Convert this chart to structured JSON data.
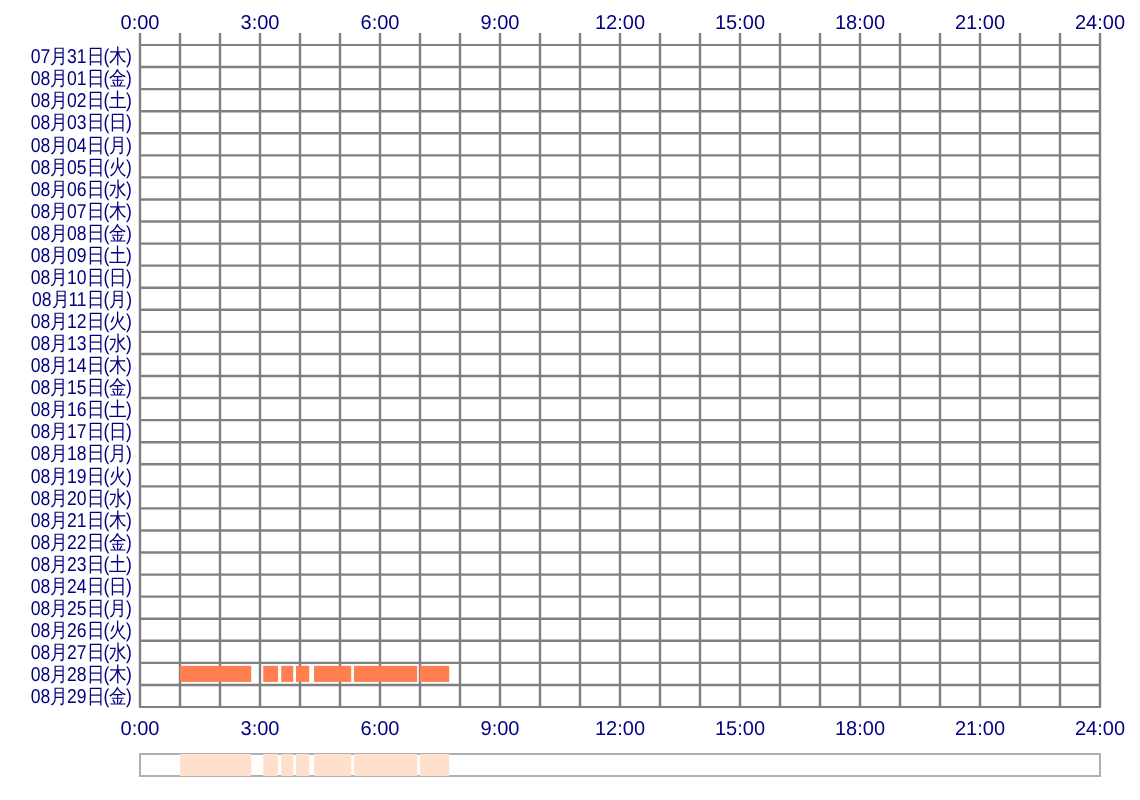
{
  "chart_data": [
    {
      "type": "bar",
      "orientation": "horizontal",
      "grid": true,
      "categories": [
        "07月31日(木)",
        "08月01日(金)",
        "08月02日(土)",
        "08月03日(日)",
        "08月04日(月)",
        "08月05日(火)",
        "08月06日(水)",
        "08月07日(木)",
        "08月08日(金)",
        "08月09日(土)",
        "08月10日(日)",
        "08月11日(月)",
        "08月12日(火)",
        "08月13日(水)",
        "08月14日(木)",
        "08月15日(金)",
        "08月16日(土)",
        "08月17日(日)",
        "08月18日(月)",
        "08月19日(火)",
        "08月20日(水)",
        "08月21日(木)",
        "08月22日(金)",
        "08月23日(土)",
        "08月24日(日)",
        "08月25日(月)",
        "08月26日(火)",
        "08月27日(水)",
        "08月28日(木)",
        "08月29日(金)"
      ],
      "series": [
        {
          "color": "#ff7f50",
          "values": [
            null,
            null,
            null,
            null,
            null,
            null,
            null,
            null,
            null,
            null,
            null,
            null,
            null,
            null,
            null,
            null,
            null,
            null,
            null,
            null,
            null,
            null,
            null,
            null,
            null,
            null,
            null,
            null,
            1.78,
            null
          ],
          "base": [
            null,
            null,
            null,
            null,
            null,
            null,
            null,
            null,
            null,
            null,
            null,
            null,
            null,
            null,
            null,
            null,
            null,
            null,
            null,
            null,
            null,
            null,
            null,
            null,
            null,
            null,
            null,
            null,
            1.0,
            null
          ]
        },
        {
          "color": "#ff7f50",
          "values": [
            null,
            null,
            null,
            null,
            null,
            null,
            null,
            null,
            null,
            null,
            null,
            null,
            null,
            null,
            null,
            null,
            null,
            null,
            null,
            null,
            null,
            null,
            null,
            null,
            null,
            null,
            null,
            null,
            0.37,
            null
          ],
          "base": [
            null,
            null,
            null,
            null,
            null,
            null,
            null,
            null,
            null,
            null,
            null,
            null,
            null,
            null,
            null,
            null,
            null,
            null,
            null,
            null,
            null,
            null,
            null,
            null,
            null,
            null,
            null,
            null,
            3.08,
            null
          ]
        },
        {
          "color": "#ff7f50",
          "values": [
            null,
            null,
            null,
            null,
            null,
            null,
            null,
            null,
            null,
            null,
            null,
            null,
            null,
            null,
            null,
            null,
            null,
            null,
            null,
            null,
            null,
            null,
            null,
            null,
            null,
            null,
            null,
            null,
            0.3,
            null
          ],
          "base": [
            null,
            null,
            null,
            null,
            null,
            null,
            null,
            null,
            null,
            null,
            null,
            null,
            null,
            null,
            null,
            null,
            null,
            null,
            null,
            null,
            null,
            null,
            null,
            null,
            null,
            null,
            null,
            null,
            3.53,
            null
          ]
        },
        {
          "color": "#ff7f50",
          "values": [
            null,
            null,
            null,
            null,
            null,
            null,
            null,
            null,
            null,
            null,
            null,
            null,
            null,
            null,
            null,
            null,
            null,
            null,
            null,
            null,
            null,
            null,
            null,
            null,
            null,
            null,
            null,
            null,
            0.33,
            null
          ],
          "base": [
            null,
            null,
            null,
            null,
            null,
            null,
            null,
            null,
            null,
            null,
            null,
            null,
            null,
            null,
            null,
            null,
            null,
            null,
            null,
            null,
            null,
            null,
            null,
            null,
            null,
            null,
            null,
            null,
            3.9,
            null
          ]
        },
        {
          "color": "#ff7f50",
          "values": [
            null,
            null,
            null,
            null,
            null,
            null,
            null,
            null,
            null,
            null,
            null,
            null,
            null,
            null,
            null,
            null,
            null,
            null,
            null,
            null,
            null,
            null,
            null,
            null,
            null,
            null,
            null,
            null,
            0.93,
            null
          ],
          "base": [
            null,
            null,
            null,
            null,
            null,
            null,
            null,
            null,
            null,
            null,
            null,
            null,
            null,
            null,
            null,
            null,
            null,
            null,
            null,
            null,
            null,
            null,
            null,
            null,
            null,
            null,
            null,
            null,
            4.35,
            null
          ]
        },
        {
          "color": "#ff7f50",
          "values": [
            null,
            null,
            null,
            null,
            null,
            null,
            null,
            null,
            null,
            null,
            null,
            null,
            null,
            null,
            null,
            null,
            null,
            null,
            null,
            null,
            null,
            null,
            null,
            null,
            null,
            null,
            null,
            null,
            1.58,
            null
          ],
          "base": [
            null,
            null,
            null,
            null,
            null,
            null,
            null,
            null,
            null,
            null,
            null,
            null,
            null,
            null,
            null,
            null,
            null,
            null,
            null,
            null,
            null,
            null,
            null,
            null,
            null,
            null,
            null,
            null,
            5.35,
            null
          ]
        },
        {
          "color": "#ff7f50",
          "values": [
            null,
            null,
            null,
            null,
            null,
            null,
            null,
            null,
            null,
            null,
            null,
            null,
            null,
            null,
            null,
            null,
            null,
            null,
            null,
            null,
            null,
            null,
            null,
            null,
            null,
            null,
            null,
            null,
            0.73,
            null
          ],
          "base": [
            null,
            null,
            null,
            null,
            null,
            null,
            null,
            null,
            null,
            null,
            null,
            null,
            null,
            null,
            null,
            null,
            null,
            null,
            null,
            null,
            null,
            null,
            null,
            null,
            null,
            null,
            null,
            null,
            7.0,
            null
          ]
        }
      ],
      "xlim": [
        0,
        24
      ],
      "xticks": [
        {
          "value": 0,
          "label": "0:00"
        },
        {
          "value": 1,
          "label": null
        },
        {
          "value": 2,
          "label": null
        },
        {
          "value": 3,
          "label": "3:00"
        },
        {
          "value": 4,
          "label": null
        },
        {
          "value": 5,
          "label": null
        },
        {
          "value": 6,
          "label": "6:00"
        },
        {
          "value": 7,
          "label": null
        },
        {
          "value": 8,
          "label": null
        },
        {
          "value": 9,
          "label": "9:00"
        },
        {
          "value": 10,
          "label": null
        },
        {
          "value": 11,
          "label": null
        },
        {
          "value": 12,
          "label": "12:00"
        },
        {
          "value": 13,
          "label": null
        },
        {
          "value": 14,
          "label": null
        },
        {
          "value": 15,
          "label": "15:00"
        },
        {
          "value": 16,
          "label": null
        },
        {
          "value": 17,
          "label": null
        },
        {
          "value": 18,
          "label": "18:00"
        },
        {
          "value": 19,
          "label": null
        },
        {
          "value": 20,
          "label": null
        },
        {
          "value": 21,
          "label": "21:00"
        },
        {
          "value": 22,
          "label": null
        },
        {
          "value": 23,
          "label": null
        },
        {
          "value": 24,
          "label": "24:00"
        }
      ],
      "x2lim": [
        0,
        24
      ],
      "x2ticks": [
        {
          "value": 0,
          "label": "0:00"
        },
        {
          "value": 1,
          "label": null
        },
        {
          "value": 2,
          "label": null
        },
        {
          "value": 3,
          "label": "3:00"
        },
        {
          "value": 4,
          "label": null
        },
        {
          "value": 5,
          "label": null
        },
        {
          "value": 6,
          "label": "6:00"
        },
        {
          "value": 7,
          "label": null
        },
        {
          "value": 8,
          "label": null
        },
        {
          "value": 9,
          "label": "9:00"
        },
        {
          "value": 10,
          "label": null
        },
        {
          "value": 11,
          "label": null
        },
        {
          "value": 12,
          "label": "12:00"
        },
        {
          "value": 13,
          "label": null
        },
        {
          "value": 14,
          "label": null
        },
        {
          "value": 15,
          "label": "15:00"
        },
        {
          "value": 16,
          "label": null
        },
        {
          "value": 17,
          "label": null
        },
        {
          "value": 18,
          "label": "18:00"
        },
        {
          "value": 19,
          "label": null
        },
        {
          "value": 20,
          "label": null
        },
        {
          "value": 21,
          "label": "21:00"
        },
        {
          "value": 22,
          "label": null
        },
        {
          "value": 23,
          "label": null
        },
        {
          "value": 24,
          "label": "24:00"
        }
      ]
    },
    {
      "type": "bar",
      "orientation": "horizontal",
      "categories": [
        null
      ],
      "xlim": [
        0,
        24
      ],
      "series": [
        {
          "color": "#ffe0cc",
          "values": [
            1.78
          ],
          "base": [
            1.0
          ]
        },
        {
          "color": "#ffe0cc",
          "values": [
            0.37
          ],
          "base": [
            3.08
          ]
        },
        {
          "color": "#ffe0cc",
          "values": [
            0.3
          ],
          "base": [
            3.53
          ]
        },
        {
          "color": "#ffe0cc",
          "values": [
            0.33
          ],
          "base": [
            3.9
          ]
        },
        {
          "color": "#ffe0cc",
          "values": [
            0.93
          ],
          "base": [
            4.35
          ]
        },
        {
          "color": "#ffe0cc",
          "values": [
            1.58
          ],
          "base": [
            5.35
          ]
        },
        {
          "color": "#ffe0cc",
          "values": [
            0.73
          ],
          "base": [
            7.0
          ]
        }
      ]
    }
  ]
}
